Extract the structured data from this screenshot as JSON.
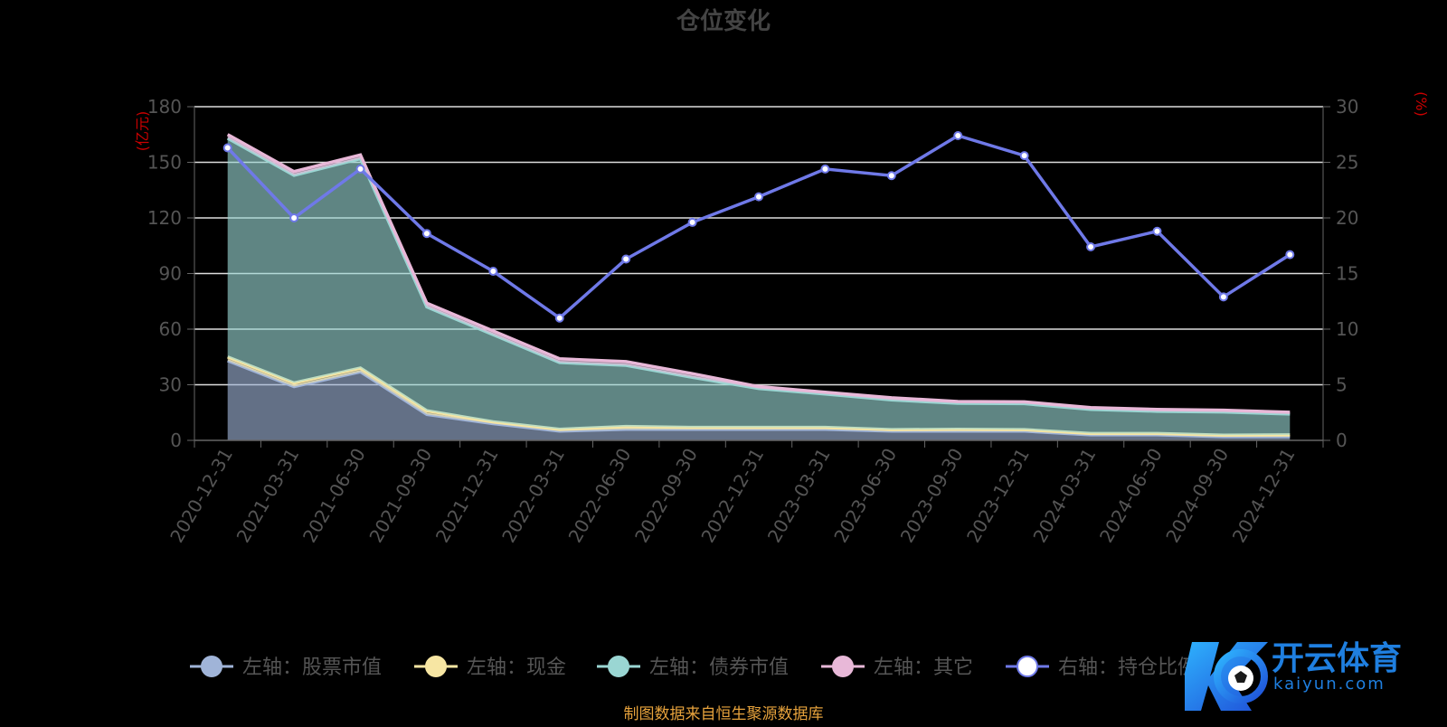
{
  "chart_data": {
    "type": "area",
    "title": "仓位变化",
    "left_axis_unit": "(亿元)",
    "right_axis_unit": "(%)",
    "categories": [
      "2020-12-31",
      "2021-03-31",
      "2021-06-30",
      "2021-09-30",
      "2021-12-31",
      "2022-03-31",
      "2022-06-30",
      "2022-09-30",
      "2022-12-31",
      "2023-03-31",
      "2023-06-30",
      "2023-09-30",
      "2023-12-31",
      "2024-03-31",
      "2024-06-30",
      "2024-09-30",
      "2024-12-31"
    ],
    "y_left_ticks": [
      "0",
      "30",
      "60",
      "90",
      "120",
      "150",
      "180"
    ],
    "y_right_ticks": [
      "0",
      "5",
      "10",
      "15",
      "20",
      "25",
      "30"
    ],
    "ylim_left": [
      0,
      180
    ],
    "ylim_right": [
      0,
      30
    ],
    "grid": true,
    "legend_position": "bottom",
    "stack_order": [
      "stock",
      "cash",
      "bond",
      "other"
    ],
    "series": [
      {
        "key": "stock",
        "name": "左轴：股票市值",
        "axis": "left",
        "kind": "area",
        "color": "#a0b4d8",
        "values": [
          43,
          29,
          37,
          14,
          9,
          5,
          6,
          6,
          6,
          6,
          5,
          5,
          5,
          3,
          3,
          2,
          2
        ]
      },
      {
        "key": "cash",
        "name": "左轴：现金",
        "axis": "left",
        "kind": "area",
        "color": "#f7e6a3",
        "values": [
          2,
          2,
          2,
          2,
          1,
          1,
          1.5,
          1,
          1,
          1,
          0.8,
          1,
          0.8,
          0.7,
          0.7,
          0.8,
          1
        ]
      },
      {
        "key": "bond",
        "name": "左轴：债券市值",
        "axis": "left",
        "kind": "area",
        "color": "#9ad6d3",
        "values": [
          118,
          112,
          113,
          56,
          47,
          36,
          33,
          27,
          21,
          18,
          16,
          14,
          14,
          13,
          12,
          12.5,
          11.2
        ]
      },
      {
        "key": "other",
        "name": "左轴：其它",
        "axis": "left",
        "kind": "area",
        "color": "#e8b8d8",
        "values": [
          2,
          2,
          2,
          2,
          2,
          2,
          2,
          2,
          1,
          1,
          1.2,
          1,
          1,
          1,
          1,
          1,
          1
        ]
      },
      {
        "key": "ratio",
        "name": "右轴：持仓比例",
        "axis": "right",
        "kind": "line",
        "color": "#6f79e8",
        "values": [
          26.3,
          20,
          24.4,
          18.6,
          15.2,
          11,
          16.3,
          19.6,
          21.9,
          24.4,
          23.8,
          27.4,
          25.6,
          17.4,
          18.8,
          12.9,
          16.7
        ]
      }
    ]
  },
  "footer": {
    "source": "制图数据来自恒生聚源数据库"
  },
  "watermark": {
    "brand": "开云体育",
    "url": "kaiyun.com"
  },
  "colors": {
    "axis_label": "#555555",
    "unit_label": "#cc0000",
    "grid": "#dddddd",
    "title": "#444444",
    "source": "#e6a23c"
  }
}
